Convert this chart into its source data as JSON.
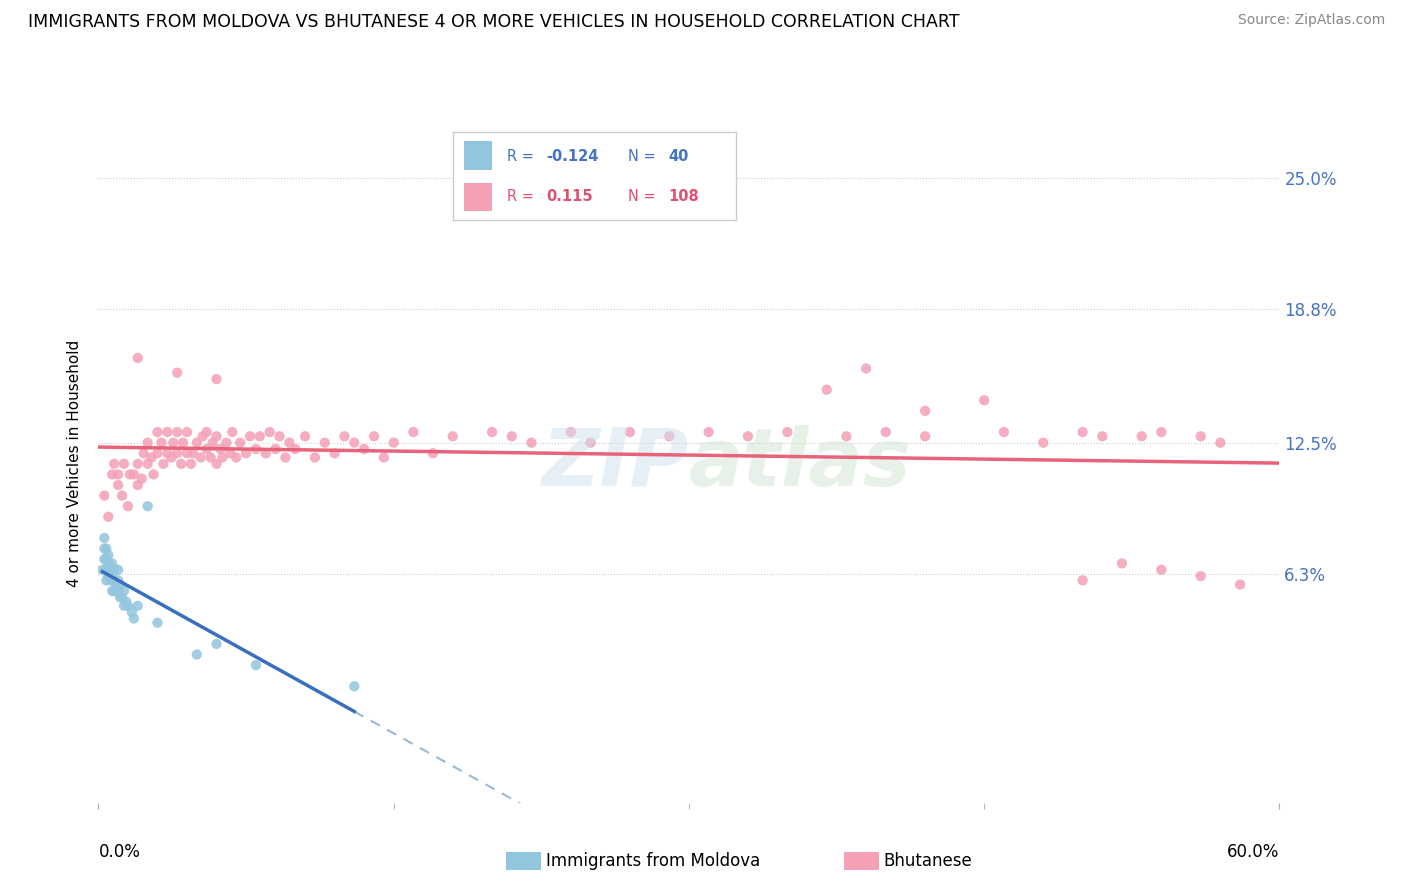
{
  "title": "IMMIGRANTS FROM MOLDOVA VS BHUTANESE 4 OR MORE VEHICLES IN HOUSEHOLD CORRELATION CHART",
  "source": "Source: ZipAtlas.com",
  "ylabel": "4 or more Vehicles in Household",
  "ytick_labels": [
    "25.0%",
    "18.8%",
    "12.5%",
    "6.3%"
  ],
  "ytick_values": [
    0.25,
    0.188,
    0.125,
    0.063
  ],
  "xtick_left_label": "0.0%",
  "xtick_right_label": "60.0%",
  "xmin": 0.0,
  "xmax": 0.6,
  "ymin": -0.045,
  "ymax": 0.275,
  "legend_r_moldova": "-0.124",
  "legend_n_moldova": "40",
  "legend_r_bhutanese": "0.115",
  "legend_n_bhutanese": "108",
  "legend_moldova_label": "Immigrants from Moldova",
  "legend_bhutanese_label": "Bhutanese",
  "color_moldova": "#92C5DE",
  "color_bhutanese": "#F4A0B5",
  "line_color_moldova": "#3A6FBF",
  "line_color_bhutanese": "#E8637A",
  "dashed_color": "#9BB8D4",
  "moldova_x": [
    0.002,
    0.003,
    0.003,
    0.003,
    0.004,
    0.004,
    0.004,
    0.004,
    0.005,
    0.005,
    0.005,
    0.006,
    0.006,
    0.007,
    0.007,
    0.007,
    0.008,
    0.008,
    0.008,
    0.009,
    0.009,
    0.01,
    0.01,
    0.01,
    0.011,
    0.011,
    0.012,
    0.013,
    0.013,
    0.014,
    0.015,
    0.017,
    0.018,
    0.02,
    0.025,
    0.03,
    0.05,
    0.06,
    0.08,
    0.13
  ],
  "moldova_y": [
    0.065,
    0.07,
    0.075,
    0.08,
    0.06,
    0.065,
    0.07,
    0.075,
    0.062,
    0.068,
    0.072,
    0.06,
    0.065,
    0.055,
    0.062,
    0.068,
    0.055,
    0.06,
    0.065,
    0.055,
    0.058,
    0.055,
    0.06,
    0.065,
    0.052,
    0.058,
    0.052,
    0.048,
    0.055,
    0.05,
    0.048,
    0.045,
    0.042,
    0.048,
    0.095,
    0.04,
    0.025,
    0.03,
    0.02,
    0.01
  ],
  "bhutanese_x": [
    0.003,
    0.005,
    0.007,
    0.008,
    0.01,
    0.01,
    0.012,
    0.013,
    0.015,
    0.016,
    0.018,
    0.02,
    0.02,
    0.022,
    0.023,
    0.025,
    0.025,
    0.027,
    0.028,
    0.03,
    0.03,
    0.032,
    0.033,
    0.035,
    0.035,
    0.037,
    0.038,
    0.04,
    0.04,
    0.042,
    0.043,
    0.045,
    0.045,
    0.047,
    0.048,
    0.05,
    0.052,
    0.053,
    0.055,
    0.055,
    0.057,
    0.058,
    0.06,
    0.06,
    0.062,
    0.063,
    0.065,
    0.067,
    0.068,
    0.07,
    0.072,
    0.075,
    0.077,
    0.08,
    0.082,
    0.085,
    0.087,
    0.09,
    0.092,
    0.095,
    0.097,
    0.1,
    0.105,
    0.11,
    0.115,
    0.12,
    0.125,
    0.13,
    0.135,
    0.14,
    0.145,
    0.15,
    0.16,
    0.17,
    0.18,
    0.2,
    0.21,
    0.22,
    0.24,
    0.25,
    0.27,
    0.29,
    0.31,
    0.33,
    0.35,
    0.38,
    0.4,
    0.42,
    0.46,
    0.5,
    0.53,
    0.56,
    0.37,
    0.39,
    0.42,
    0.45,
    0.48,
    0.51,
    0.54,
    0.57,
    0.5,
    0.52,
    0.54,
    0.56,
    0.58,
    0.02,
    0.04,
    0.06
  ],
  "bhutanese_y": [
    0.1,
    0.09,
    0.11,
    0.115,
    0.105,
    0.11,
    0.1,
    0.115,
    0.095,
    0.11,
    0.11,
    0.105,
    0.115,
    0.108,
    0.12,
    0.115,
    0.125,
    0.118,
    0.11,
    0.12,
    0.13,
    0.125,
    0.115,
    0.12,
    0.13,
    0.118,
    0.125,
    0.12,
    0.13,
    0.115,
    0.125,
    0.12,
    0.13,
    0.115,
    0.12,
    0.125,
    0.118,
    0.128,
    0.122,
    0.13,
    0.118,
    0.125,
    0.115,
    0.128,
    0.122,
    0.118,
    0.125,
    0.12,
    0.13,
    0.118,
    0.125,
    0.12,
    0.128,
    0.122,
    0.128,
    0.12,
    0.13,
    0.122,
    0.128,
    0.118,
    0.125,
    0.122,
    0.128,
    0.118,
    0.125,
    0.12,
    0.128,
    0.125,
    0.122,
    0.128,
    0.118,
    0.125,
    0.13,
    0.12,
    0.128,
    0.13,
    0.128,
    0.125,
    0.13,
    0.125,
    0.13,
    0.128,
    0.13,
    0.128,
    0.13,
    0.128,
    0.13,
    0.128,
    0.13,
    0.13,
    0.128,
    0.128,
    0.15,
    0.16,
    0.14,
    0.145,
    0.125,
    0.128,
    0.13,
    0.125,
    0.06,
    0.068,
    0.065,
    0.062,
    0.058,
    0.165,
    0.158,
    0.155
  ]
}
